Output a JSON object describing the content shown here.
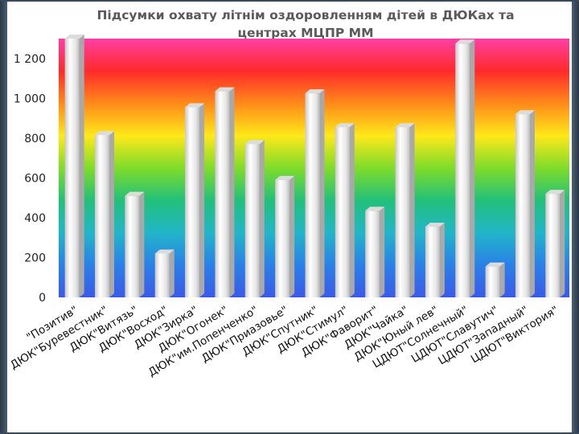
{
  "chart_data": {
    "type": "bar",
    "title_lines": [
      "Підсумки охвату літнім оздоровленням дітей в ДЮКах  та",
      "центрах МЦПР ММ"
    ],
    "categories": [
      "\"Позитив\"",
      "ДЮК\"Буревестник\"",
      "ДЮК\"Витязь\"",
      "ДЮК\"Восход\"",
      "ДЮК\"Зирка\"",
      "ДЮК\"Огонек\"",
      "ДЮК\"им.Попенченко\"",
      "ДЮК\"Приазовье\"",
      "ДЮК\"Спутник\"",
      "ДЮК\"Стимул\"",
      "ДЮК\"Фаворит\"",
      "ДЮК\"Чайка\"",
      "ДЮК\"Юный лев\"",
      "ЦДЮТ\"Солнечный\"",
      "ЦДЮТ\"Славутич\"",
      "ЦДЮТ\"Западный\"",
      "ЦДЮТ\"Виктория\""
    ],
    "values": [
      1300,
      815,
      510,
      220,
      955,
      1035,
      770,
      590,
      1025,
      855,
      435,
      855,
      355,
      1275,
      155,
      920,
      520
    ],
    "ylim": [
      0,
      1300
    ],
    "yticks": [
      0,
      200,
      400,
      600,
      800,
      1000,
      1200
    ],
    "ytick_labels": [
      "0",
      "200",
      "400",
      "600",
      "800",
      "1 000",
      "1 200"
    ],
    "xlabel": "",
    "ylabel": "",
    "grid": false,
    "legend": "none",
    "background_gradient": [
      "#ff3fa5",
      "#ff2a2a",
      "#ff8a1a",
      "#ffe81a",
      "#7fdc2a",
      "#22c07a",
      "#22b6c8",
      "#2a80e8",
      "#3a5ae8"
    ],
    "bar_color": "#f4f4f4"
  }
}
